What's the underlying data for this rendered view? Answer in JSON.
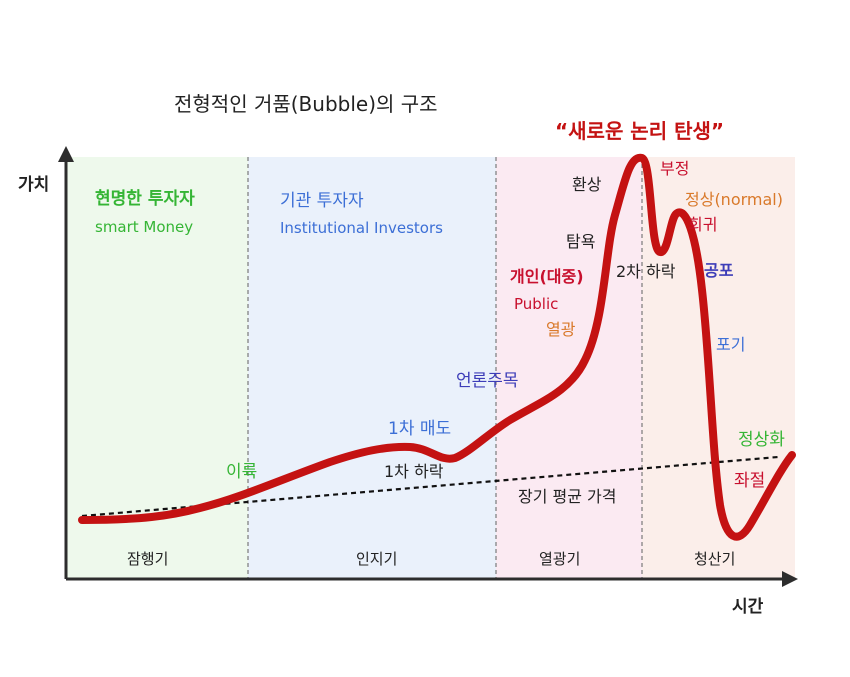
{
  "title": "전형적인 거품(Bubble)의 구조",
  "headline": "“새로운 논리 탄생”",
  "axes": {
    "y_label": "가치",
    "x_label": "시간"
  },
  "phases": [
    {
      "name": "잠행기",
      "participant_ko": "현명한 투자자",
      "participant_en": "smart Money",
      "bg": "#eef9ec",
      "text_color": "#35b535"
    },
    {
      "name": "인지기",
      "participant_ko": "기관 투자자",
      "participant_en": "Institutional Investors",
      "bg": "#eaf1fb",
      "text_color": "#3c6fd6"
    },
    {
      "name": "열광기",
      "participant_ko": "개인(대중)",
      "participant_en": "Public",
      "bg": "#fbeaf2",
      "text_color": "#c8102e"
    },
    {
      "name": "청산기",
      "bg": "#fbeeea"
    }
  ],
  "annotations": {
    "profit": "이륙",
    "first_sell": "1차 매도",
    "first_drop": "1차 하락",
    "media": "언론주목",
    "long_term_avg": "장기 평균 가격",
    "enthusiasm": "열광",
    "greed": "탐욕",
    "delusion": "환상",
    "denial": "부정",
    "second_drop": "2차 하락",
    "return_normal": "정상(normal)",
    "return_normal_2": "회귀",
    "fear": "공포",
    "giveup": "포기",
    "despair": "좌절",
    "normalize": "정상화"
  },
  "colors": {
    "curve": "#c41212",
    "green": "#35b535",
    "blue": "#3c6fd6",
    "red": "#c8102e",
    "orange": "#d9792a",
    "dark": "#222222"
  }
}
